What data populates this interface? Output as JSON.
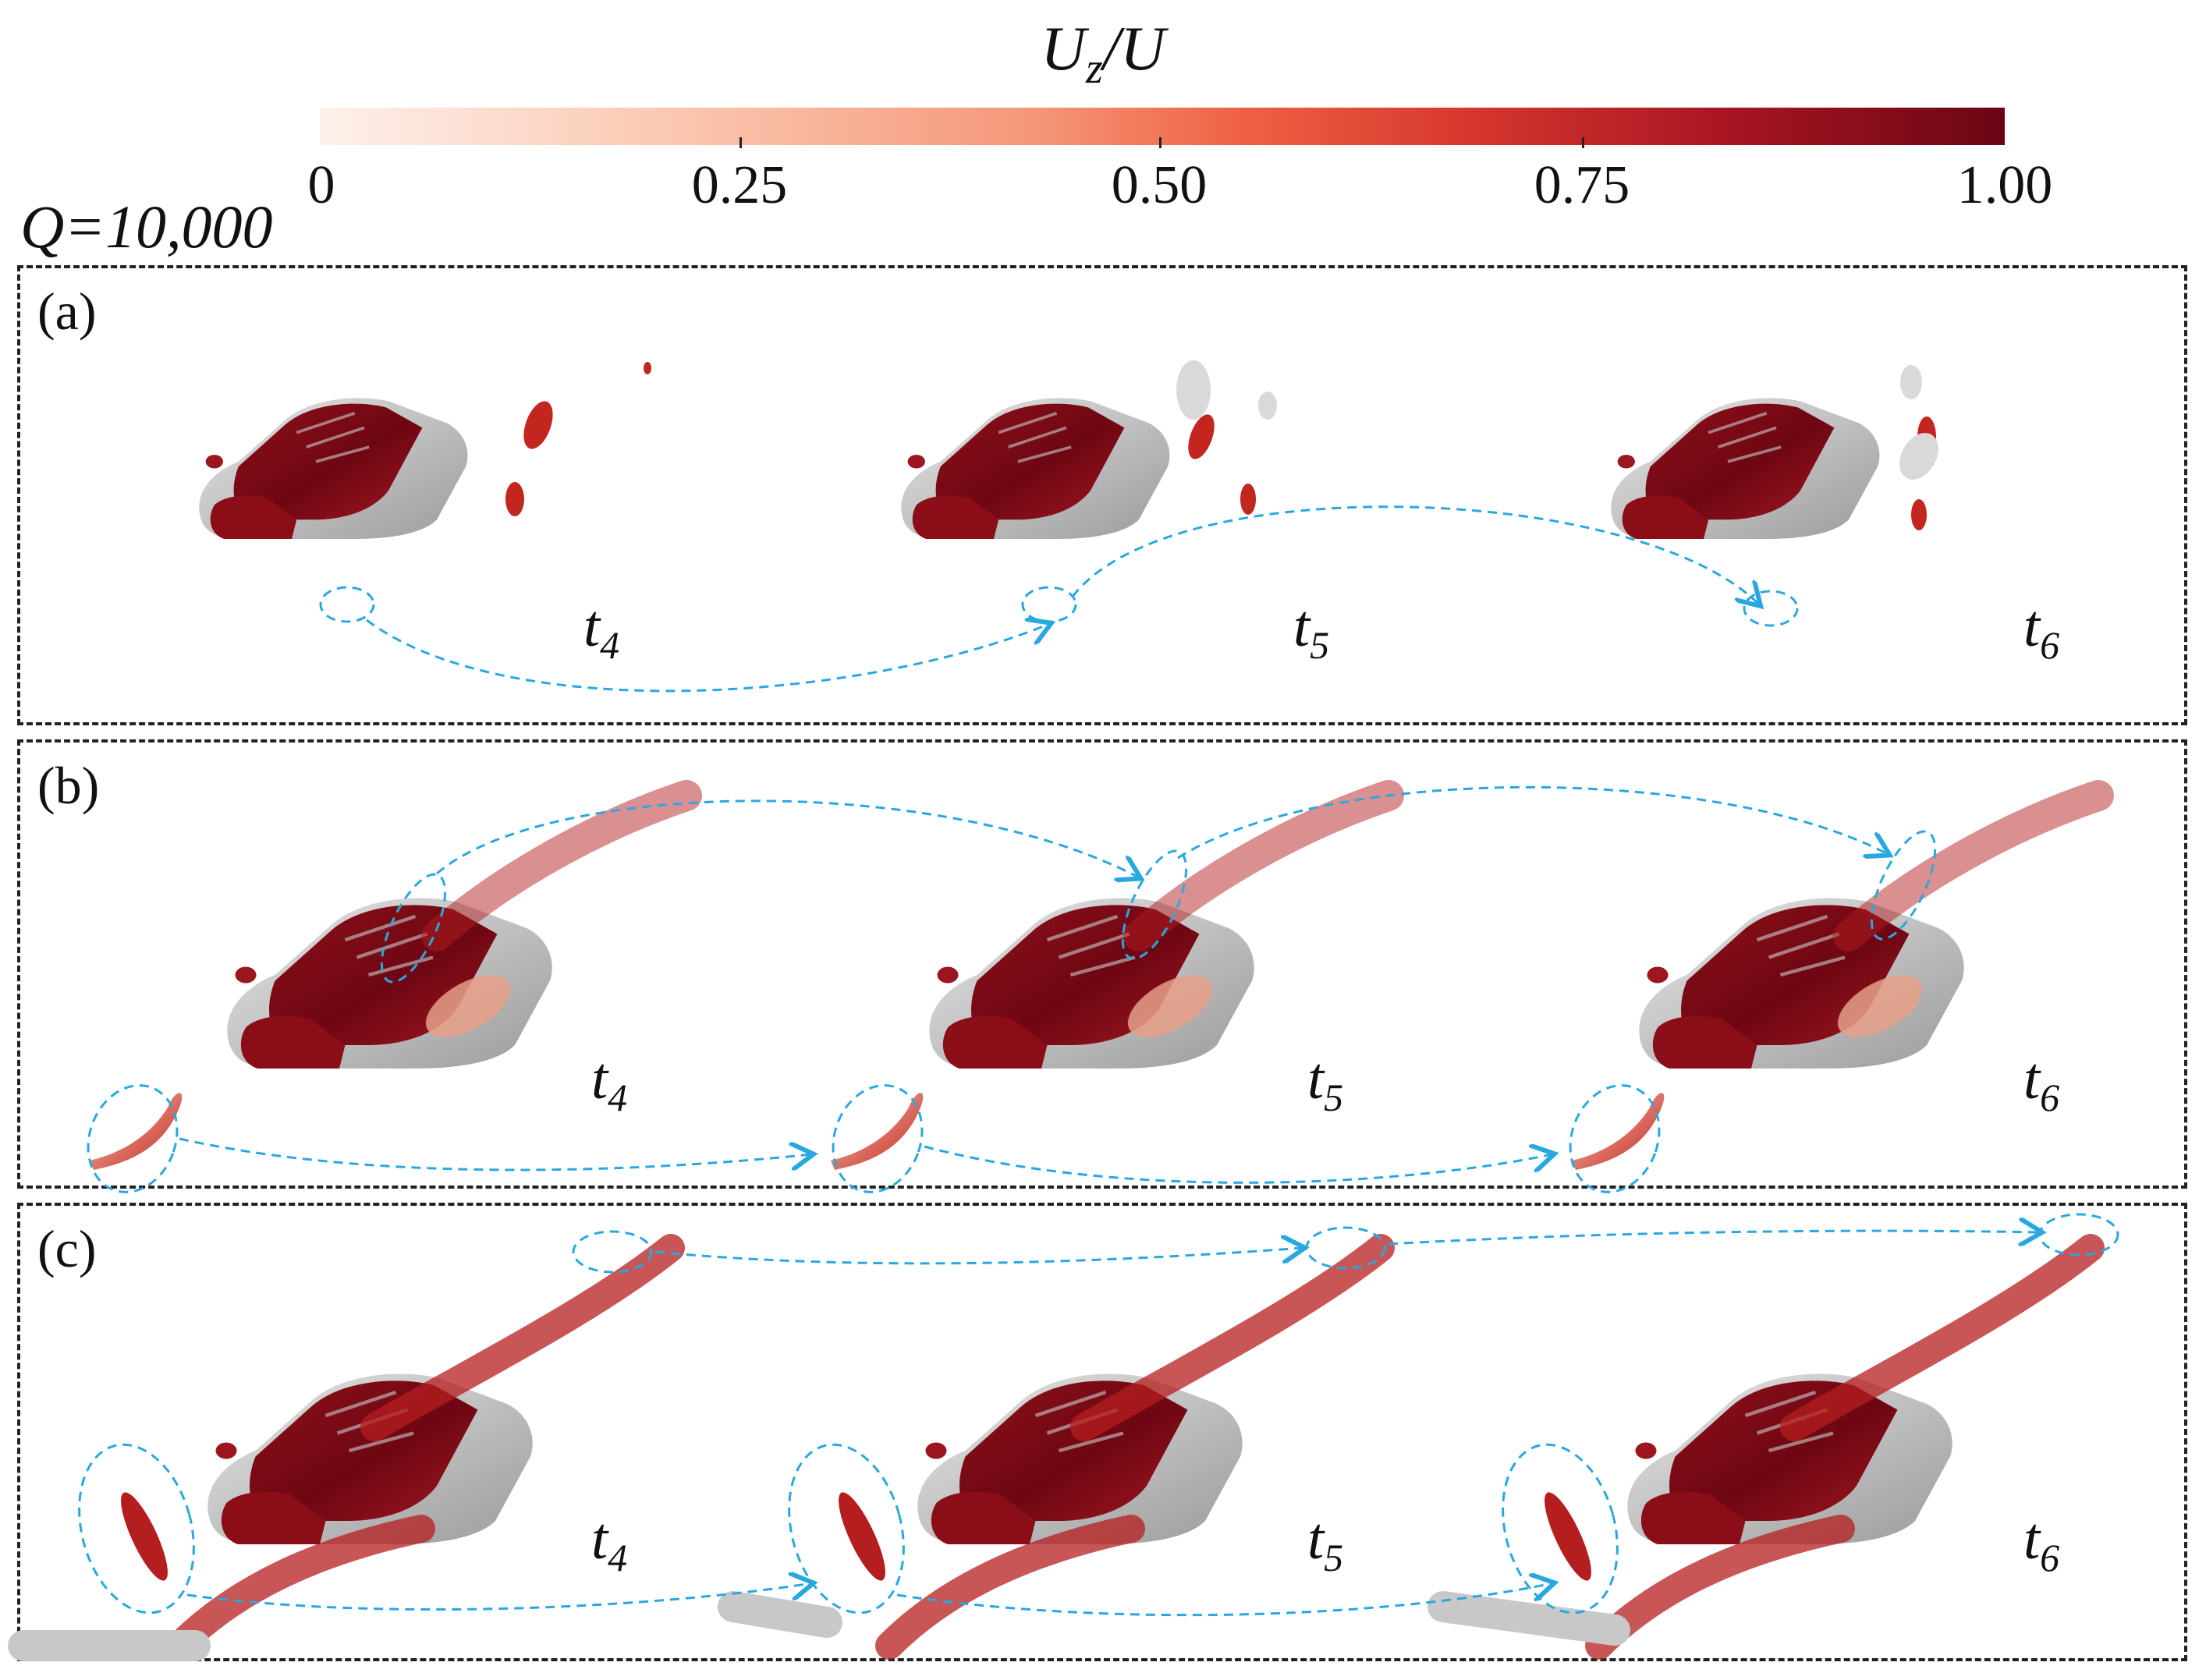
{
  "colorbar": {
    "title_main": "U",
    "title_sub": "z",
    "title_rest": "/U",
    "ticks": [
      "0",
      "0.25",
      "0.50",
      "0.75",
      "1.00"
    ],
    "range": [
      0,
      1
    ]
  },
  "q_label": "Q=10,000",
  "panels": [
    {
      "label": "(a)",
      "times": [
        {
          "t": "t",
          "n": "4"
        },
        {
          "t": "t",
          "n": "5"
        },
        {
          "t": "t",
          "n": "6"
        }
      ]
    },
    {
      "label": "(b)",
      "times": [
        {
          "t": "t",
          "n": "4"
        },
        {
          "t": "t",
          "n": "5"
        },
        {
          "t": "t",
          "n": "6"
        }
      ]
    },
    {
      "label": "(c)",
      "times": [
        {
          "t": "t",
          "n": "4"
        },
        {
          "t": "t",
          "n": "5"
        },
        {
          "t": "t",
          "n": "6"
        }
      ]
    }
  ],
  "colors": {
    "car_dark": "#7a0a16",
    "car_gray": "#b9b9b9",
    "vortex_red": "#c2261f",
    "vortex_light": "#f2a78f",
    "arrow": "#29a8e0",
    "border": "#222222"
  }
}
